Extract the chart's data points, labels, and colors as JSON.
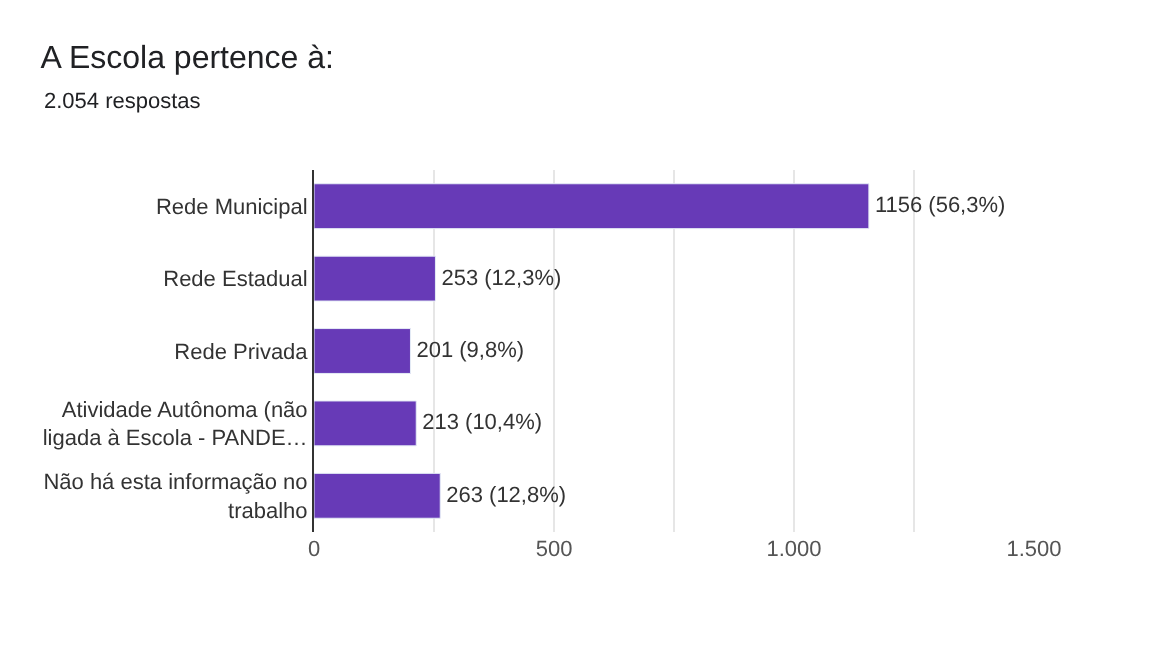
{
  "chart_data": {
    "type": "bar",
    "orientation": "horizontal",
    "title": "A Escola pertence à:",
    "subtitle": "2.054 respostas",
    "categories": [
      "Rede Municipal",
      "Rede Estadual",
      "Rede Privada",
      "Atividade Autônoma (não ligada à Escola - PANDE…",
      "Não há esta informação no trabalho"
    ],
    "values": [
      1156,
      253,
      201,
      213,
      263
    ],
    "value_labels": [
      "1156 (56,3%)",
      "253 (12,3%)",
      "201 (9,8%)",
      "213 (10,4%)",
      "263 (12,8%)"
    ],
    "color": "#673ab7",
    "xlim": [
      0,
      1500
    ],
    "xticks": [
      0,
      {
        "value": 250,
        "label": null
      },
      500,
      {
        "value": 750,
        "label": null
      },
      {
        "value": 1000,
        "label": "1.000"
      },
      {
        "value": 1250,
        "label": null
      },
      {
        "value": 1500,
        "label": "1.500"
      }
    ],
    "grid": "x",
    "legend": false
  }
}
